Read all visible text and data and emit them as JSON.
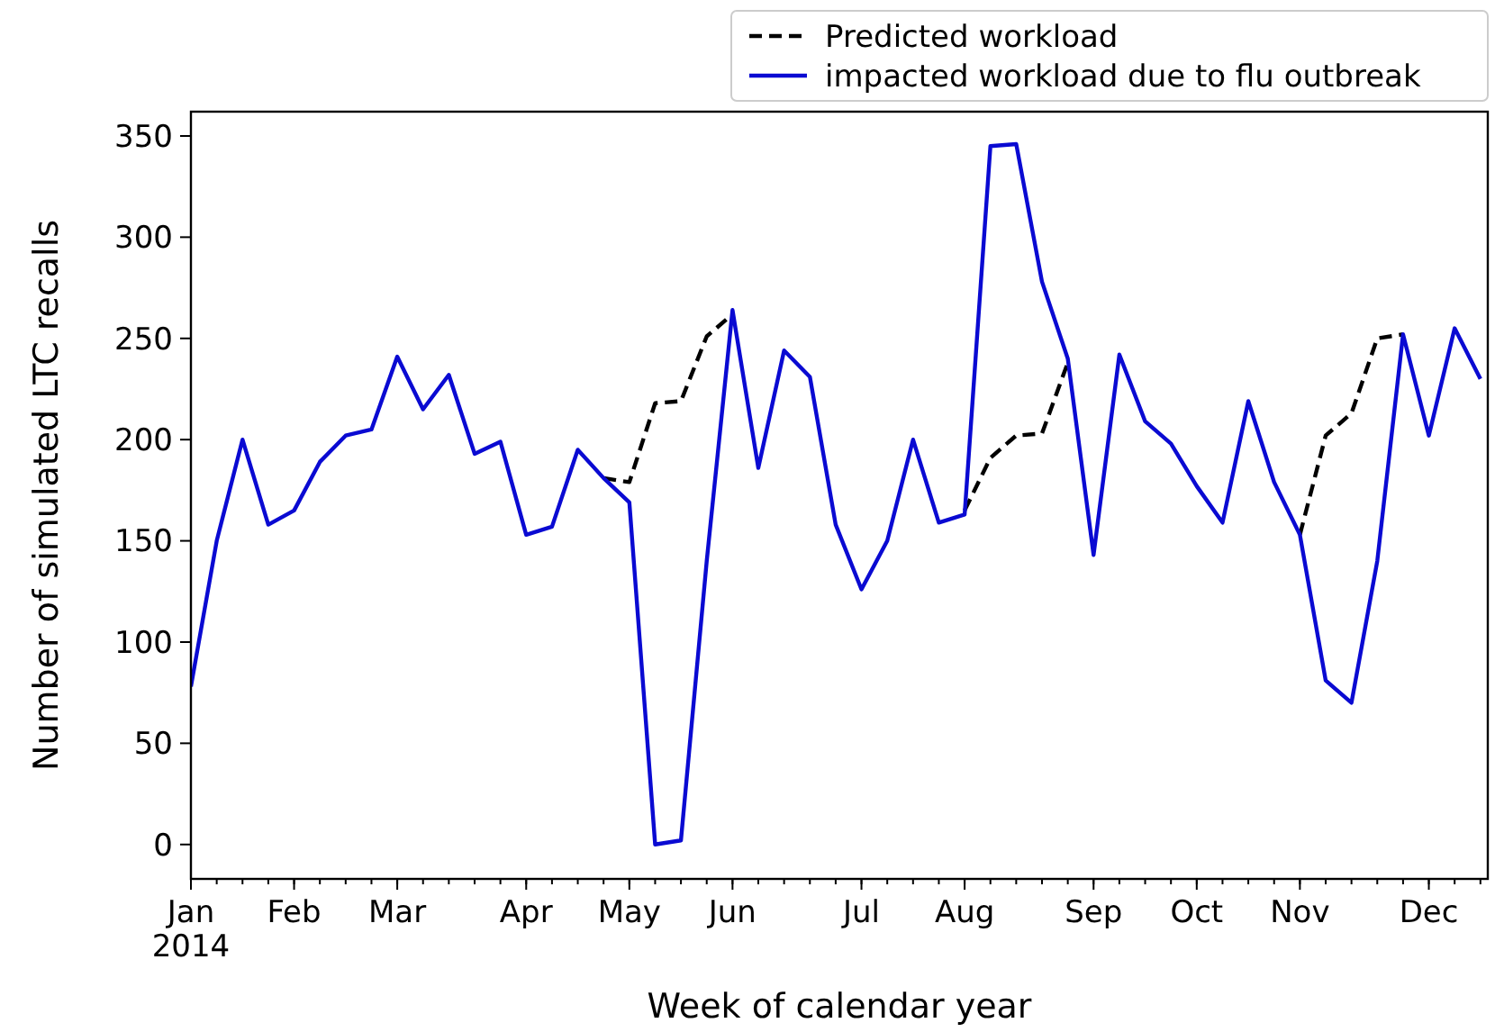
{
  "chart_data": {
    "type": "line",
    "xlabel": "Week of calendar year",
    "ylabel": "Number of simulated LTC recalls",
    "x": [
      "2014-01-05",
      "2014-01-12",
      "2014-01-19",
      "2014-01-26",
      "2014-02-02",
      "2014-02-09",
      "2014-02-16",
      "2014-02-23",
      "2014-03-02",
      "2014-03-09",
      "2014-03-16",
      "2014-03-23",
      "2014-03-30",
      "2014-04-06",
      "2014-04-13",
      "2014-04-20",
      "2014-04-27",
      "2014-05-04",
      "2014-05-11",
      "2014-05-18",
      "2014-05-25",
      "2014-06-01",
      "2014-06-08",
      "2014-06-15",
      "2014-06-22",
      "2014-06-29",
      "2014-07-06",
      "2014-07-13",
      "2014-07-20",
      "2014-07-27",
      "2014-08-03",
      "2014-08-10",
      "2014-08-17",
      "2014-08-24",
      "2014-08-31",
      "2014-09-07",
      "2014-09-14",
      "2014-09-21",
      "2014-09-28",
      "2014-10-05",
      "2014-10-12",
      "2014-10-19",
      "2014-10-26",
      "2014-11-02",
      "2014-11-09",
      "2014-11-16",
      "2014-11-23",
      "2014-11-30",
      "2014-12-07",
      "2014-12-14",
      "2014-12-21"
    ],
    "series": [
      {
        "name": "Predicted workload",
        "color": "#000000",
        "line_style": "dashed",
        "values": [
          null,
          null,
          null,
          null,
          null,
          null,
          null,
          null,
          null,
          null,
          null,
          null,
          null,
          null,
          null,
          null,
          181,
          179,
          218,
          219,
          251,
          262,
          null,
          null,
          null,
          null,
          null,
          null,
          null,
          null,
          165,
          191,
          202,
          203,
          238,
          null,
          null,
          null,
          null,
          null,
          null,
          null,
          null,
          153,
          202,
          213,
          250,
          252,
          null,
          null,
          null
        ]
      },
      {
        "name": "impacted workload due to flu outbreak",
        "color": "#0a0ad2",
        "line_style": "solid",
        "values": [
          78,
          150,
          200,
          158,
          165,
          189,
          202,
          205,
          241,
          215,
          232,
          193,
          199,
          153,
          157,
          195,
          181,
          169,
          0,
          2,
          140,
          264,
          186,
          244,
          231,
          158,
          126,
          150,
          200,
          159,
          163,
          345,
          346,
          278,
          240,
          143,
          242,
          209,
          198,
          177,
          159,
          219,
          179,
          153,
          81,
          70,
          140,
          252,
          202,
          255,
          230
        ]
      }
    ],
    "xlim": [
      "2014-01-05",
      "2014-12-23"
    ],
    "xticks": [
      {
        "value": "2014-01-05",
        "label": "Jan\n2014"
      },
      {
        "value": "2014-02-02",
        "label": "Feb"
      },
      {
        "value": "2014-03-02",
        "label": "Mar"
      },
      {
        "value": "2014-04-06",
        "label": "Apr"
      },
      {
        "value": "2014-05-04",
        "label": "May"
      },
      {
        "value": "2014-06-01",
        "label": "Jun"
      },
      {
        "value": "2014-07-06",
        "label": "Jul"
      },
      {
        "value": "2014-08-03",
        "label": "Aug"
      },
      {
        "value": "2014-09-07",
        "label": "Sep"
      },
      {
        "value": "2014-10-05",
        "label": "Oct"
      },
      {
        "value": "2014-11-02",
        "label": "Nov"
      },
      {
        "value": "2014-12-07",
        "label": "Dec"
      }
    ],
    "ylim": [
      -17,
      362
    ],
    "yticks": [
      0,
      50,
      100,
      150,
      200,
      250,
      300,
      350
    ],
    "grid": false,
    "legend": "top right",
    "marker": "none"
  }
}
